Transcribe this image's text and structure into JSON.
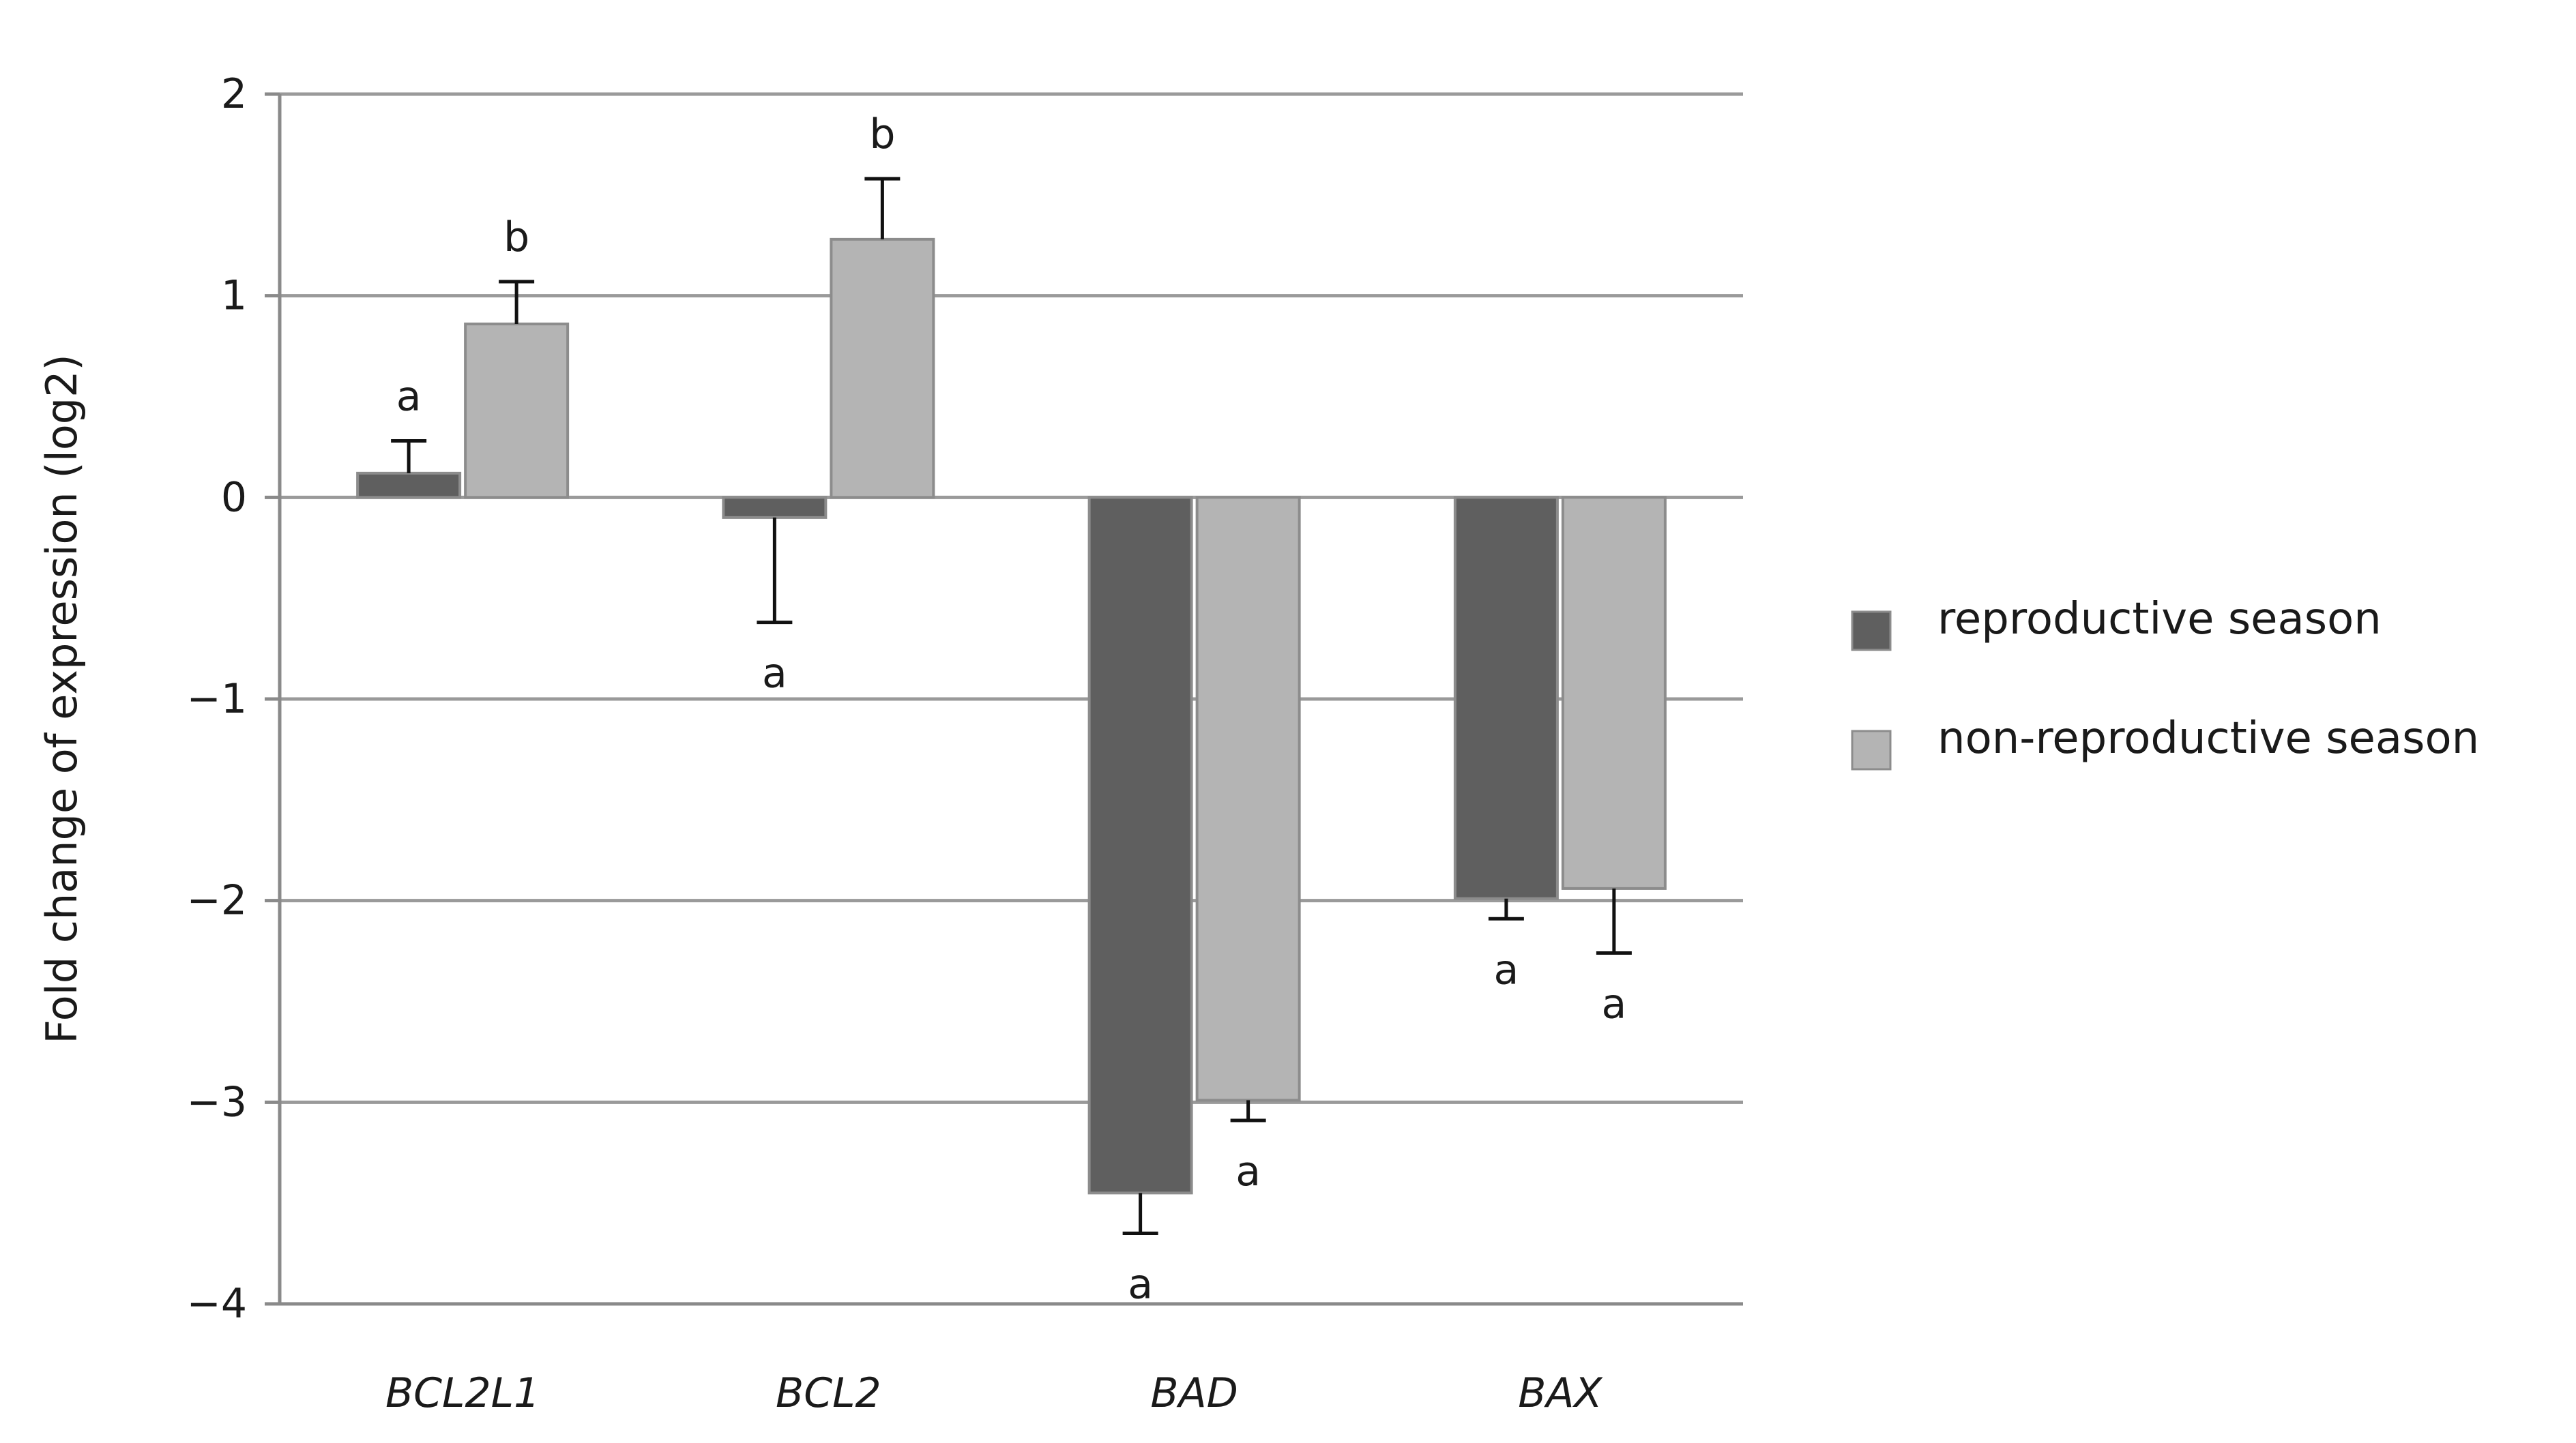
{
  "chart_data": {
    "type": "bar",
    "title": "",
    "xlabel": "",
    "ylabel": "Fold change of expression (log2)",
    "ylim": [
      -4,
      2
    ],
    "yticks": [
      2,
      1,
      0,
      -1,
      -2,
      -3,
      -4
    ],
    "ytick_labels": [
      "2",
      "1",
      "0",
      "−1",
      "−2",
      "−3",
      "−4"
    ],
    "grid": true,
    "legend_position": "right",
    "categories": [
      "BCL2L1",
      "BCL2",
      "BAD",
      "BAX"
    ],
    "series": [
      {
        "name": "reproductive season",
        "color": "#5f5f5f",
        "values": [
          0.12,
          -0.1,
          -3.45,
          -1.99
        ],
        "errors": [
          0.16,
          0.52,
          0.2,
          0.1
        ],
        "labels": [
          "a",
          "a",
          "a",
          "a"
        ]
      },
      {
        "name": "non-reproductive season",
        "color": "#b4b4b4",
        "values": [
          0.86,
          1.28,
          -2.99,
          -1.94
        ],
        "errors": [
          0.21,
          0.3,
          0.1,
          0.32
        ],
        "labels": [
          "b",
          "b",
          "a",
          "a"
        ]
      }
    ]
  }
}
